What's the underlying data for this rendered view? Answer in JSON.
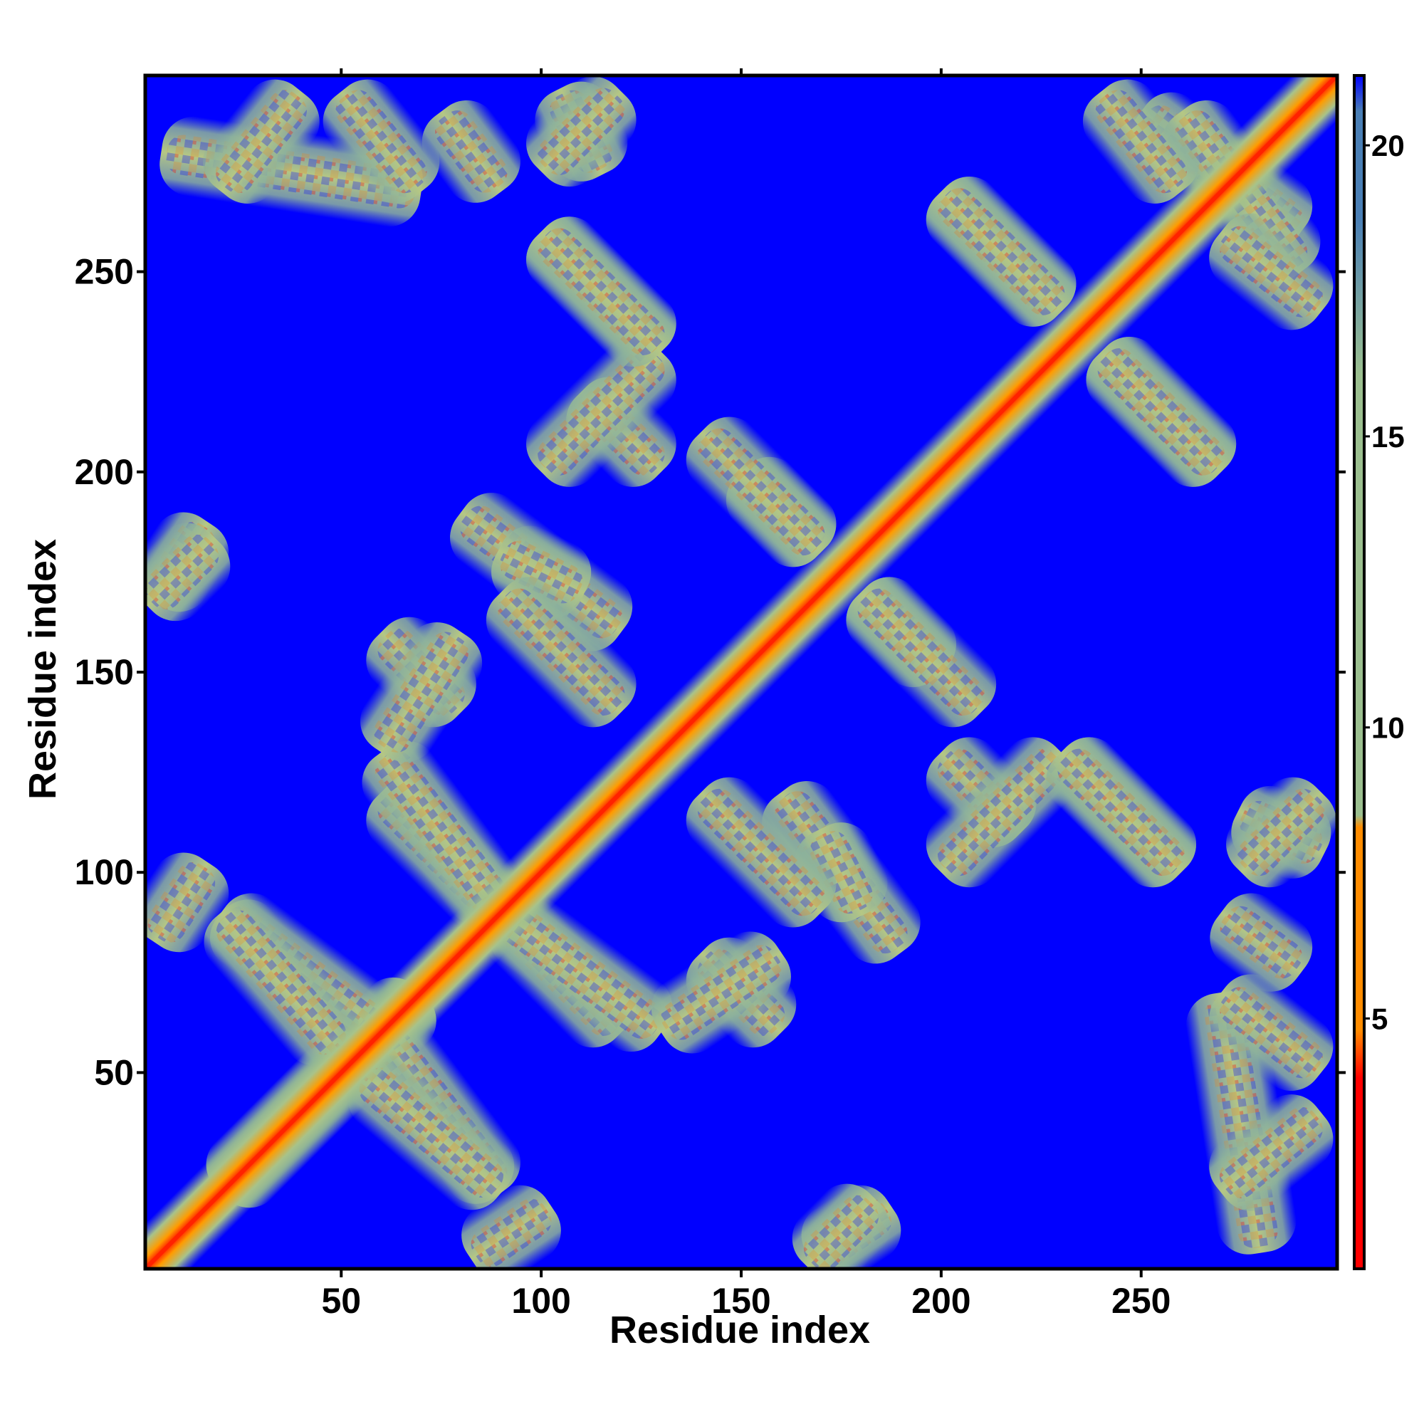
{
  "chart_data": {
    "type": "heatmap",
    "title": "",
    "xlabel": "Residue index",
    "ylabel": "Residue index",
    "xlim": [
      1,
      299
    ],
    "ylim": [
      1,
      299
    ],
    "x_ticks": [
      50,
      100,
      150,
      200,
      250
    ],
    "y_ticks": [
      50,
      100,
      150,
      200,
      250
    ],
    "colorbar": {
      "ticks": [
        5,
        10,
        15,
        20
      ],
      "range": [
        0.7,
        21.2
      ],
      "colors": {
        "low": "#ff0000",
        "low_mid": "#ff8c00",
        "mid": "#9bbf8f",
        "high": "#4a7fb5",
        "max": "#0000ff"
      }
    },
    "background_color": "#0000ff",
    "diagonal_color": "#ff2200",
    "bands": [
      {
        "x": [
          20,
          70
        ],
        "y": [
          20,
          70
        ]
      },
      {
        "x": [
          5,
          70
        ],
        "y": [
          280,
          270
        ]
      },
      {
        "x": [
          75,
          90
        ],
        "y": [
          290,
          270
        ]
      },
      {
        "x": [
          105,
          115
        ],
        "y": [
          295,
          275
        ]
      },
      {
        "x": [
          100,
          130
        ],
        "y": [
          260,
          230
        ]
      },
      {
        "x": [
          110,
          130
        ],
        "y": [
          220,
          200
        ]
      },
      {
        "x": [
          80,
          120
        ],
        "y": [
          190,
          160
        ]
      },
      {
        "x": [
          90,
          110
        ],
        "y": [
          180,
          170
        ]
      },
      {
        "x": [
          60,
          80
        ],
        "y": [
          160,
          140
        ]
      },
      {
        "x": [
          60,
          90
        ],
        "y": [
          120,
          90
        ]
      },
      {
        "x": [
          20,
          60
        ],
        "y": [
          90,
          60
        ]
      },
      {
        "x": [
          55,
          90
        ],
        "y": [
          50,
          20
        ]
      },
      {
        "x": [
          90,
          130
        ],
        "y": [
          90,
          60
        ]
      },
      {
        "x": [
          130,
          160
        ],
        "y": [
          60,
          80
        ]
      },
      {
        "x": [
          140,
          170
        ],
        "y": [
          120,
          90
        ]
      },
      {
        "x": [
          150,
          170
        ],
        "y": [
          200,
          180
        ]
      },
      {
        "x": [
          180,
          210
        ],
        "y": [
          170,
          140
        ]
      },
      {
        "x": [
          200,
          230
        ],
        "y": [
          100,
          130
        ]
      },
      {
        "x": [
          230,
          260
        ],
        "y": [
          130,
          100
        ]
      },
      {
        "x": [
          200,
          230
        ],
        "y": [
          270,
          240
        ]
      },
      {
        "x": [
          240,
          270
        ],
        "y": [
          230,
          200
        ]
      },
      {
        "x": [
          250,
          290
        ],
        "y": [
          290,
          260
        ]
      },
      {
        "x": [
          270,
          295
        ],
        "y": [
          260,
          240
        ]
      },
      {
        "x": [
          270,
          295
        ],
        "y": [
          70,
          50
        ]
      },
      {
        "x": [
          270,
          295
        ],
        "y": [
          20,
          40
        ]
      },
      {
        "x": [
          275,
          295
        ],
        "y": [
          100,
          120
        ]
      },
      {
        "x": [
          170,
          185
        ],
        "y": [
          5,
          15
        ]
      },
      {
        "x": [
          5,
          15
        ],
        "y": [
          170,
          180
        ]
      },
      {
        "x": [
          5,
          15
        ],
        "y": [
          85,
          100
        ]
      }
    ]
  }
}
